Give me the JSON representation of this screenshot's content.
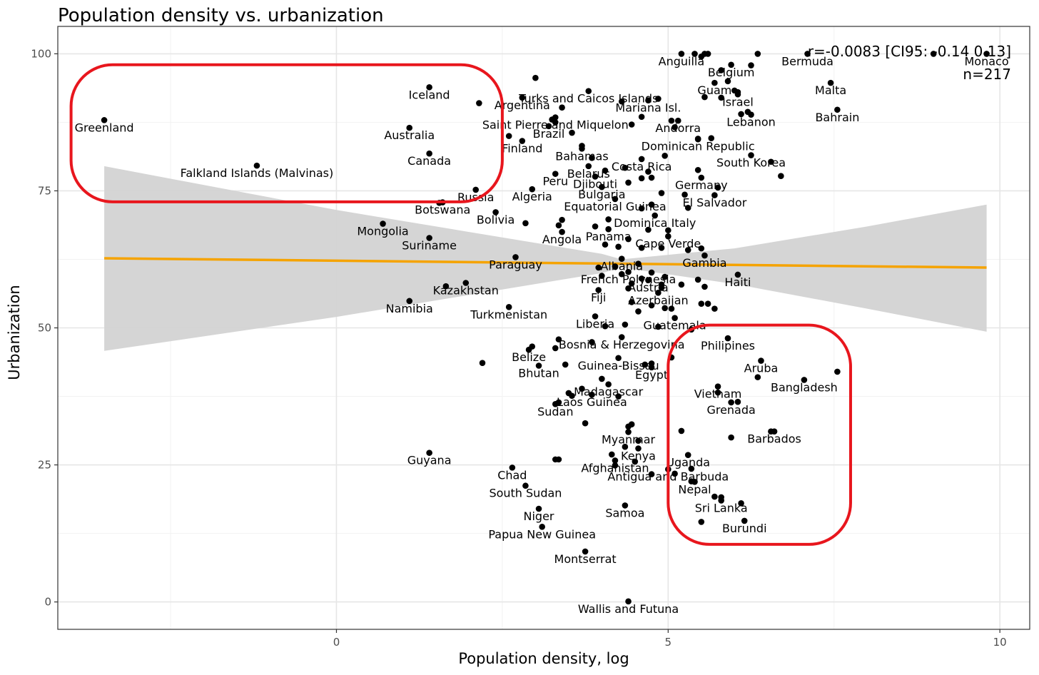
{
  "chart_data": {
    "type": "scatter",
    "title": "Population density vs. urbanization",
    "xlabel": "Population density, log",
    "ylabel": "Urbanization",
    "xlim": [
      -4.2,
      10.45
    ],
    "ylim": [
      -5,
      105
    ],
    "x_ticks": [
      0,
      5,
      10
    ],
    "y_ticks": [
      0,
      25,
      50,
      75,
      100
    ],
    "x_tick_labels": [
      "0",
      "5",
      "10"
    ],
    "y_tick_labels": [
      "0",
      "25",
      "50",
      "75",
      "100"
    ],
    "annotation": {
      "stat": "r=-0.0083 [CI95: -0.14 0.13]",
      "n": "n=217"
    },
    "trend_line": {
      "x": [
        -3.5,
        9.8
      ],
      "y": [
        62.7,
        61.0
      ],
      "color": "#f5a300"
    },
    "confidence_band": {
      "x": [
        -3.5,
        0,
        2,
        4,
        4.3,
        6,
        8,
        9.8
      ],
      "upper": [
        79.5,
        71.5,
        67.5,
        63.5,
        62.5,
        64.5,
        68.5,
        72.5
      ],
      "lower": [
        45.8,
        52.0,
        56.0,
        60.0,
        61.0,
        58.0,
        53.5,
        49.3
      ],
      "color": "#d3d3d3"
    },
    "highlight_boxes": [
      {
        "x": [
          -4.0,
          2.5
        ],
        "y": [
          73.0,
          98.0
        ],
        "color": "#e8161d"
      },
      {
        "x": [
          5.0,
          7.75
        ],
        "y": [
          10.5,
          50.5
        ],
        "color": "#e8161d"
      }
    ],
    "labeled_points": [
      {
        "label": "Greenland",
        "x": -3.5,
        "y": 87.9
      },
      {
        "label": "Falkland Islands (Malvinas)",
        "x": -1.2,
        "y": 79.6
      },
      {
        "label": "Iceland",
        "x": 1.4,
        "y": 93.9
      },
      {
        "label": "Australia",
        "x": 1.1,
        "y": 86.5
      },
      {
        "label": "Canada",
        "x": 1.4,
        "y": 81.8
      },
      {
        "label": "Russia",
        "x": 2.1,
        "y": 75.2
      },
      {
        "label": "Botswana",
        "x": 1.6,
        "y": 72.9
      },
      {
        "label": "Mongolia",
        "x": 0.7,
        "y": 69.0
      },
      {
        "label": "Suriname",
        "x": 1.4,
        "y": 66.4
      },
      {
        "label": "Kazakhstan",
        "x": 1.95,
        "y": 58.2
      },
      {
        "label": "Namibia",
        "x": 1.1,
        "y": 54.9
      },
      {
        "label": "Guyana",
        "x": 1.4,
        "y": 27.2
      },
      {
        "label": "Bolivia",
        "x": 2.4,
        "y": 71.1
      },
      {
        "label": "Algeria",
        "x": 2.95,
        "y": 75.3
      },
      {
        "label": "Argentina",
        "x": 2.8,
        "y": 92.0
      },
      {
        "label": "Turks and Caicos Islands",
        "x": 3.8,
        "y": 93.2
      },
      {
        "label": "Saint Pierre and Miquelon",
        "x": 3.3,
        "y": 88.4
      },
      {
        "label": "Brazil",
        "x": 3.2,
        "y": 86.8
      },
      {
        "label": "Finland",
        "x": 2.8,
        "y": 84.1
      },
      {
        "label": "Bahamas",
        "x": 3.7,
        "y": 82.7
      },
      {
        "label": "Peru",
        "x": 3.3,
        "y": 78.1
      },
      {
        "label": "Paraguay",
        "x": 2.7,
        "y": 62.9
      },
      {
        "label": "Turkmenistan",
        "x": 2.6,
        "y": 53.8
      },
      {
        "label": "Angola",
        "x": 3.4,
        "y": 67.5
      },
      {
        "label": "Belize",
        "x": 2.9,
        "y": 46.0
      },
      {
        "label": "Bhutan",
        "x": 3.05,
        "y": 43.1
      },
      {
        "label": "Chad",
        "x": 2.65,
        "y": 24.5
      },
      {
        "label": "South Sudan",
        "x": 2.85,
        "y": 21.2
      },
      {
        "label": "Niger",
        "x": 3.05,
        "y": 17.0
      },
      {
        "label": "Papua New Guinea",
        "x": 3.1,
        "y": 13.7
      },
      {
        "label": "Sudan",
        "x": 3.3,
        "y": 36.1
      },
      {
        "label": "Laos Guinea",
        "x": 3.85,
        "y": 37.8
      },
      {
        "label": "Madagascar",
        "x": 4.1,
        "y": 39.7
      },
      {
        "label": "Montserrat",
        "x": 3.75,
        "y": 9.2
      },
      {
        "label": "Wallis and Futuna",
        "x": 4.4,
        "y": 0.1
      },
      {
        "label": "Belarus",
        "x": 3.8,
        "y": 79.5
      },
      {
        "label": "Djibouti",
        "x": 3.9,
        "y": 77.6
      },
      {
        "label": "Bulgaria",
        "x": 4.0,
        "y": 75.7
      },
      {
        "label": "Equatorial Guinea",
        "x": 4.2,
        "y": 73.5
      },
      {
        "label": "Panama",
        "x": 4.1,
        "y": 68.0
      },
      {
        "label": "Costa Rica",
        "x": 4.6,
        "y": 80.8
      },
      {
        "label": "Mariana Isl.",
        "x": 4.7,
        "y": 91.5
      },
      {
        "label": "Dominica Italy",
        "x": 4.8,
        "y": 70.5
      },
      {
        "label": "Albania",
        "x": 4.3,
        "y": 62.6
      },
      {
        "label": "French Polynesia",
        "x": 4.4,
        "y": 60.2
      },
      {
        "label": "Fiji",
        "x": 3.95,
        "y": 56.9
      },
      {
        "label": "Austria",
        "x": 4.7,
        "y": 58.7
      },
      {
        "label": "Azerbaijan",
        "x": 4.85,
        "y": 56.4
      },
      {
        "label": "Liberia",
        "x": 3.9,
        "y": 52.1
      },
      {
        "label": "Guatemala",
        "x": 5.1,
        "y": 51.8
      },
      {
        "label": "Bosnia & Herzegovina",
        "x": 4.3,
        "y": 48.3
      },
      {
        "label": "Guinea-Bissau",
        "x": 4.25,
        "y": 44.5
      },
      {
        "label": "Egypt",
        "x": 4.75,
        "y": 42.8
      },
      {
        "label": "Myanmar",
        "x": 4.4,
        "y": 31.0
      },
      {
        "label": "Kenya",
        "x": 4.55,
        "y": 28.0
      },
      {
        "label": "Afghanistan",
        "x": 4.2,
        "y": 25.8
      },
      {
        "label": "Samoa",
        "x": 4.35,
        "y": 17.6
      },
      {
        "label": "Anguilla",
        "x": 5.2,
        "y": 100.0
      },
      {
        "label": "Belgium",
        "x": 5.95,
        "y": 98.0
      },
      {
        "label": "Guam",
        "x": 5.7,
        "y": 94.7
      },
      {
        "label": "Israel",
        "x": 6.05,
        "y": 92.6
      },
      {
        "label": "Andorra",
        "x": 5.15,
        "y": 87.8
      },
      {
        "label": "Lebanon",
        "x": 6.25,
        "y": 88.9
      },
      {
        "label": "Dominican Republic",
        "x": 5.45,
        "y": 84.5
      },
      {
        "label": "South Korea",
        "x": 6.25,
        "y": 81.5
      },
      {
        "label": "Germany",
        "x": 5.5,
        "y": 77.4
      },
      {
        "label": "El Salvador",
        "x": 5.7,
        "y": 74.2
      },
      {
        "label": "Cape Verde",
        "x": 5.0,
        "y": 66.7
      },
      {
        "label": "Gambia",
        "x": 5.55,
        "y": 63.2
      },
      {
        "label": "Haiti",
        "x": 6.05,
        "y": 59.7
      },
      {
        "label": "Bermuda",
        "x": 7.1,
        "y": 100.0
      },
      {
        "label": "Monaco",
        "x": 9.8,
        "y": 100.0
      },
      {
        "label": "Malta",
        "x": 7.45,
        "y": 94.7
      },
      {
        "label": "Bahrain",
        "x": 7.55,
        "y": 89.8
      },
      {
        "label": "Philipines",
        "x": 5.9,
        "y": 48.1
      },
      {
        "label": "Aruba",
        "x": 6.4,
        "y": 44.0
      },
      {
        "label": "Bangladesh",
        "x": 7.05,
        "y": 40.5
      },
      {
        "label": "Vietnam",
        "x": 5.75,
        "y": 39.3
      },
      {
        "label": "Grenada",
        "x": 5.95,
        "y": 36.4
      },
      {
        "label": "Barbados",
        "x": 6.6,
        "y": 31.1
      },
      {
        "label": "Uganda",
        "x": 5.3,
        "y": 26.8
      },
      {
        "label": "Antigua and Barbuda",
        "x": 5.0,
        "y": 24.2
      },
      {
        "label": "Nepal",
        "x": 5.4,
        "y": 21.9
      },
      {
        "label": "Sri Lanka",
        "x": 5.8,
        "y": 18.5
      },
      {
        "label": "Burundi",
        "x": 6.15,
        "y": 14.8
      }
    ],
    "other_points": [
      {
        "x": 3.0,
        "y": 95.6
      },
      {
        "x": 3.4,
        "y": 90.2
      },
      {
        "x": 3.25,
        "y": 88.0
      },
      {
        "x": 3.3,
        "y": 87.5
      },
      {
        "x": 3.55,
        "y": 85.6
      },
      {
        "x": 2.6,
        "y": 85.0
      },
      {
        "x": 3.7,
        "y": 83.2
      },
      {
        "x": 3.85,
        "y": 81.0
      },
      {
        "x": 2.15,
        "y": 91.0
      },
      {
        "x": 4.3,
        "y": 91.3
      },
      {
        "x": 4.85,
        "y": 91.8
      },
      {
        "x": 4.6,
        "y": 88.5
      },
      {
        "x": 4.45,
        "y": 87.1
      },
      {
        "x": 5.1,
        "y": 86.6
      },
      {
        "x": 4.95,
        "y": 81.4
      },
      {
        "x": 4.35,
        "y": 79.2
      },
      {
        "x": 4.7,
        "y": 78.5
      },
      {
        "x": 4.75,
        "y": 77.4
      },
      {
        "x": 4.6,
        "y": 77.3
      },
      {
        "x": 4.4,
        "y": 76.5
      },
      {
        "x": 4.05,
        "y": 78.7
      },
      {
        "x": 5.45,
        "y": 78.8
      },
      {
        "x": 5.25,
        "y": 74.3
      },
      {
        "x": 4.9,
        "y": 74.6
      },
      {
        "x": 4.75,
        "y": 72.5
      },
      {
        "x": 4.6,
        "y": 71.8
      },
      {
        "x": 5.3,
        "y": 71.9
      },
      {
        "x": 3.4,
        "y": 69.7
      },
      {
        "x": 3.35,
        "y": 68.7
      },
      {
        "x": 2.85,
        "y": 69.1
      },
      {
        "x": 1.55,
        "y": 72.8
      },
      {
        "x": 4.1,
        "y": 69.8
      },
      {
        "x": 3.9,
        "y": 68.5
      },
      {
        "x": 4.7,
        "y": 67.9
      },
      {
        "x": 5.0,
        "y": 67.8
      },
      {
        "x": 4.4,
        "y": 66.2
      },
      {
        "x": 4.25,
        "y": 64.8
      },
      {
        "x": 4.6,
        "y": 64.6
      },
      {
        "x": 4.9,
        "y": 64.6
      },
      {
        "x": 5.3,
        "y": 64.2
      },
      {
        "x": 5.5,
        "y": 64.5
      },
      {
        "x": 4.05,
        "y": 65.2
      },
      {
        "x": 3.95,
        "y": 61.0
      },
      {
        "x": 4.2,
        "y": 61.2
      },
      {
        "x": 4.55,
        "y": 61.7
      },
      {
        "x": 4.75,
        "y": 60.1
      },
      {
        "x": 4.0,
        "y": 59.5
      },
      {
        "x": 4.3,
        "y": 59.8
      },
      {
        "x": 4.6,
        "y": 59.0
      },
      {
        "x": 4.95,
        "y": 59.3
      },
      {
        "x": 5.45,
        "y": 58.8
      },
      {
        "x": 5.55,
        "y": 57.5
      },
      {
        "x": 4.45,
        "y": 58.1
      },
      {
        "x": 4.9,
        "y": 57.9
      },
      {
        "x": 5.2,
        "y": 57.9
      },
      {
        "x": 1.65,
        "y": 57.6
      },
      {
        "x": 4.4,
        "y": 57.2
      },
      {
        "x": 4.9,
        "y": 57.3
      },
      {
        "x": 4.45,
        "y": 54.7
      },
      {
        "x": 4.75,
        "y": 54.1
      },
      {
        "x": 4.95,
        "y": 53.6
      },
      {
        "x": 5.05,
        "y": 53.5
      },
      {
        "x": 5.5,
        "y": 54.4
      },
      {
        "x": 5.6,
        "y": 54.4
      },
      {
        "x": 5.7,
        "y": 53.5
      },
      {
        "x": 4.55,
        "y": 53.0
      },
      {
        "x": 4.35,
        "y": 50.6
      },
      {
        "x": 4.05,
        "y": 50.3
      },
      {
        "x": 4.85,
        "y": 50.2
      },
      {
        "x": 5.35,
        "y": 49.7
      },
      {
        "x": 3.35,
        "y": 47.9
      },
      {
        "x": 3.85,
        "y": 47.4
      },
      {
        "x": 2.95,
        "y": 46.6
      },
      {
        "x": 3.3,
        "y": 46.3
      },
      {
        "x": 3.45,
        "y": 43.3
      },
      {
        "x": 4.75,
        "y": 43.5
      },
      {
        "x": 4.65,
        "y": 43.3
      },
      {
        "x": 5.05,
        "y": 44.6
      },
      {
        "x": 2.2,
        "y": 43.6
      },
      {
        "x": 4.0,
        "y": 40.7
      },
      {
        "x": 3.7,
        "y": 38.9
      },
      {
        "x": 3.5,
        "y": 38.1
      },
      {
        "x": 3.55,
        "y": 37.6
      },
      {
        "x": 4.25,
        "y": 37.5
      },
      {
        "x": 3.35,
        "y": 36.4
      },
      {
        "x": 4.45,
        "y": 32.4
      },
      {
        "x": 4.4,
        "y": 32.0
      },
      {
        "x": 3.75,
        "y": 32.6
      },
      {
        "x": 4.55,
        "y": 29.4
      },
      {
        "x": 4.35,
        "y": 28.3
      },
      {
        "x": 4.15,
        "y": 26.9
      },
      {
        "x": 3.3,
        "y": 26.0
      },
      {
        "x": 3.35,
        "y": 26.0
      },
      {
        "x": 4.5,
        "y": 25.6
      },
      {
        "x": 4.2,
        "y": 24.9
      },
      {
        "x": 4.75,
        "y": 23.3
      },
      {
        "x": 5.2,
        "y": 31.2
      },
      {
        "x": 5.35,
        "y": 22.0
      },
      {
        "x": 5.1,
        "y": 23.4
      },
      {
        "x": 5.35,
        "y": 24.3
      },
      {
        "x": 5.7,
        "y": 19.2
      },
      {
        "x": 5.8,
        "y": 19.1
      },
      {
        "x": 6.1,
        "y": 18.0
      },
      {
        "x": 5.5,
        "y": 14.6
      },
      {
        "x": 5.95,
        "y": 30.0
      },
      {
        "x": 6.55,
        "y": 31.1
      },
      {
        "x": 6.35,
        "y": 41.0
      },
      {
        "x": 7.55,
        "y": 42.0
      },
      {
        "x": 5.75,
        "y": 38.2
      },
      {
        "x": 6.05,
        "y": 36.5
      },
      {
        "x": 5.4,
        "y": 100.0
      },
      {
        "x": 5.5,
        "y": 99.5
      },
      {
        "x": 5.55,
        "y": 100.0
      },
      {
        "x": 5.6,
        "y": 100.0
      },
      {
        "x": 6.35,
        "y": 100.0
      },
      {
        "x": 6.25,
        "y": 97.9
      },
      {
        "x": 5.8,
        "y": 97.0
      },
      {
        "x": 5.9,
        "y": 95.0
      },
      {
        "x": 6.0,
        "y": 93.3
      },
      {
        "x": 6.05,
        "y": 93.0
      },
      {
        "x": 5.55,
        "y": 92.1
      },
      {
        "x": 5.8,
        "y": 92.0
      },
      {
        "x": 6.1,
        "y": 89.0
      },
      {
        "x": 6.2,
        "y": 89.4
      },
      {
        "x": 5.65,
        "y": 84.6
      },
      {
        "x": 5.45,
        "y": 84.4
      },
      {
        "x": 6.55,
        "y": 80.3
      },
      {
        "x": 6.7,
        "y": 77.7
      },
      {
        "x": 5.75,
        "y": 75.6
      },
      {
        "x": 9.0,
        "y": 100.0
      },
      {
        "x": 5.05,
        "y": 87.8
      }
    ]
  }
}
